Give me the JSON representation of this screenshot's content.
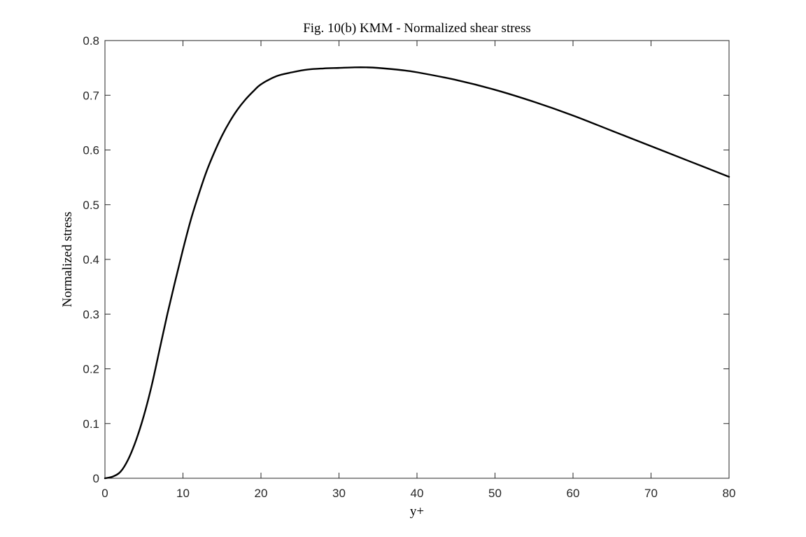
{
  "chart_data": {
    "type": "line",
    "title": "Fig. 10(b) KMM - Normalized shear stress",
    "xlabel": "y+",
    "ylabel": "Normalized stress",
    "xlim": [
      0,
      80
    ],
    "ylim": [
      0,
      0.8
    ],
    "xticks": [
      0,
      10,
      20,
      30,
      40,
      50,
      60,
      70,
      80
    ],
    "yticks": [
      0,
      0.1,
      0.2,
      0.3,
      0.4,
      0.5,
      0.6,
      0.7,
      0.8
    ],
    "xtick_labels": [
      "0",
      "10",
      "20",
      "30",
      "40",
      "50",
      "60",
      "70",
      "80"
    ],
    "ytick_labels": [
      "0",
      "0.1",
      "0.2",
      "0.3",
      "0.4",
      "0.5",
      "0.6",
      "0.7",
      "0.8"
    ],
    "grid": false,
    "legend": null,
    "series": [
      {
        "color": "#000000",
        "x": [
          0,
          1,
          2,
          3,
          4,
          5,
          6,
          7,
          8,
          9,
          10,
          11,
          12,
          13,
          14,
          15,
          16,
          17,
          18,
          19,
          20,
          22,
          24,
          26,
          28,
          30,
          32,
          33.5,
          35,
          38,
          40,
          45,
          50,
          55,
          60,
          65,
          70,
          75,
          80
        ],
        "y": [
          0,
          0.003,
          0.012,
          0.035,
          0.07,
          0.115,
          0.17,
          0.235,
          0.3,
          0.36,
          0.418,
          0.472,
          0.518,
          0.56,
          0.595,
          0.626,
          0.652,
          0.674,
          0.692,
          0.707,
          0.72,
          0.735,
          0.742,
          0.747,
          0.749,
          0.75,
          0.751,
          0.751,
          0.75,
          0.746,
          0.742,
          0.728,
          0.71,
          0.688,
          0.663,
          0.635,
          0.607,
          0.579,
          0.551
        ]
      }
    ]
  }
}
